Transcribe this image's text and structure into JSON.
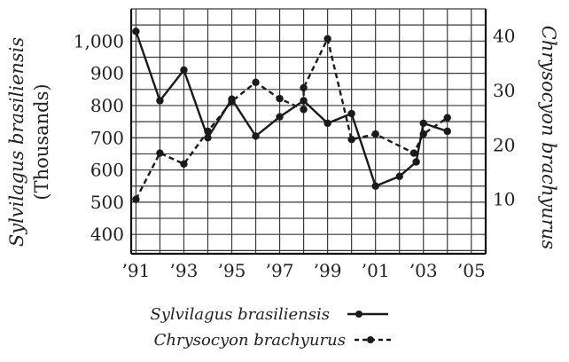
{
  "chart_data": {
    "type": "line",
    "x": [
      1991,
      1992,
      1993,
      1994,
      1995,
      1996,
      1997,
      1998,
      1999,
      2000,
      2001,
      2002,
      2003,
      2004
    ],
    "x_tick_values": [
      1991,
      1993,
      1995,
      1997,
      1999,
      2001,
      2003,
      2005
    ],
    "x_tick_labels": [
      "’91",
      "’93",
      "’95",
      "’97",
      "’99",
      "’01",
      "’03",
      "’05"
    ],
    "xlim": [
      1990.8,
      2005.6
    ],
    "y_left": {
      "label_line1": "Sylvilagus brasiliensis",
      "label_line2": "(Thousands)",
      "ticks": [
        400,
        500,
        600,
        700,
        800,
        900,
        1000
      ],
      "tick_labels": [
        "400",
        "500",
        "600",
        "700",
        "800",
        "900",
        "1,000"
      ],
      "lim": [
        340,
        1100
      ]
    },
    "y_right": {
      "label": "Chrysocyon brachyurus",
      "ticks": [
        10,
        20,
        30,
        40
      ],
      "tick_labels": [
        "10",
        "20",
        "30",
        "40"
      ],
      "lim": [
        0,
        45
      ]
    },
    "series": [
      {
        "name": "Sylvilagus brasiliensis",
        "axis": "left",
        "style": "solid",
        "color": "#1a1a1a",
        "points": [
          [
            1991,
            1030
          ],
          [
            1992,
            815
          ],
          [
            1993,
            910
          ],
          [
            1994,
            700
          ],
          [
            1995,
            820
          ],
          [
            1996,
            705
          ],
          [
            1997,
            765
          ],
          [
            1998,
            815
          ],
          [
            1999,
            745
          ],
          [
            2000,
            775
          ],
          [
            2001,
            550
          ],
          [
            2002,
            580
          ],
          [
            2002.7,
            625
          ],
          [
            2003,
            745
          ],
          [
            2004,
            720
          ]
        ]
      },
      {
        "name": "Chrysocyon brachyurus",
        "axis": "right",
        "style": "dashed",
        "color": "#1a1a1a",
        "points": [
          [
            1991,
            10
          ],
          [
            1992,
            18.5
          ],
          [
            1993,
            16.5
          ],
          [
            1994,
            22.5
          ],
          [
            1995,
            28
          ],
          [
            1996,
            31.5
          ],
          [
            1997,
            28.5
          ],
          [
            1998,
            26.5
          ],
          [
            1998,
            30.5
          ],
          [
            1999,
            39.5
          ],
          [
            2000,
            21
          ],
          [
            2001,
            22
          ],
          [
            2002.6,
            18.5
          ],
          [
            2003,
            22
          ],
          [
            2004,
            25
          ]
        ]
      }
    ],
    "grid": true,
    "legend_position": "bottom-center"
  }
}
